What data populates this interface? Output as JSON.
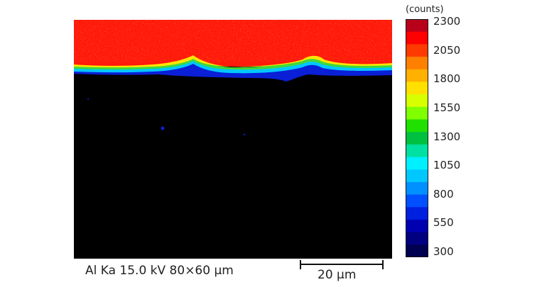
{
  "map": {
    "element": "Al",
    "line": "Ka",
    "colors": {
      "high": "#ff1a0a",
      "low": "#000000"
    }
  },
  "colorbar": {
    "unit": "(counts)",
    "ticks": [
      "2300",
      "2050",
      "1800",
      "1550",
      "1300",
      "1050",
      "800",
      "550",
      "300"
    ],
    "colors": [
      "#b8001a",
      "#ff0000",
      "#ff3a00",
      "#ff8000",
      "#ffb000",
      "#ffe000",
      "#d8ff00",
      "#80ff00",
      "#20e000",
      "#00c040",
      "#00e0a0",
      "#00f0ff",
      "#00c8ff",
      "#0090ff",
      "#0050ff",
      "#0020e0",
      "#0000b0",
      "#000080",
      "#000050"
    ]
  },
  "caption": "Al Ka 15.0 kV 80×60 μm",
  "scale_bar": {
    "label": "20 μm"
  }
}
